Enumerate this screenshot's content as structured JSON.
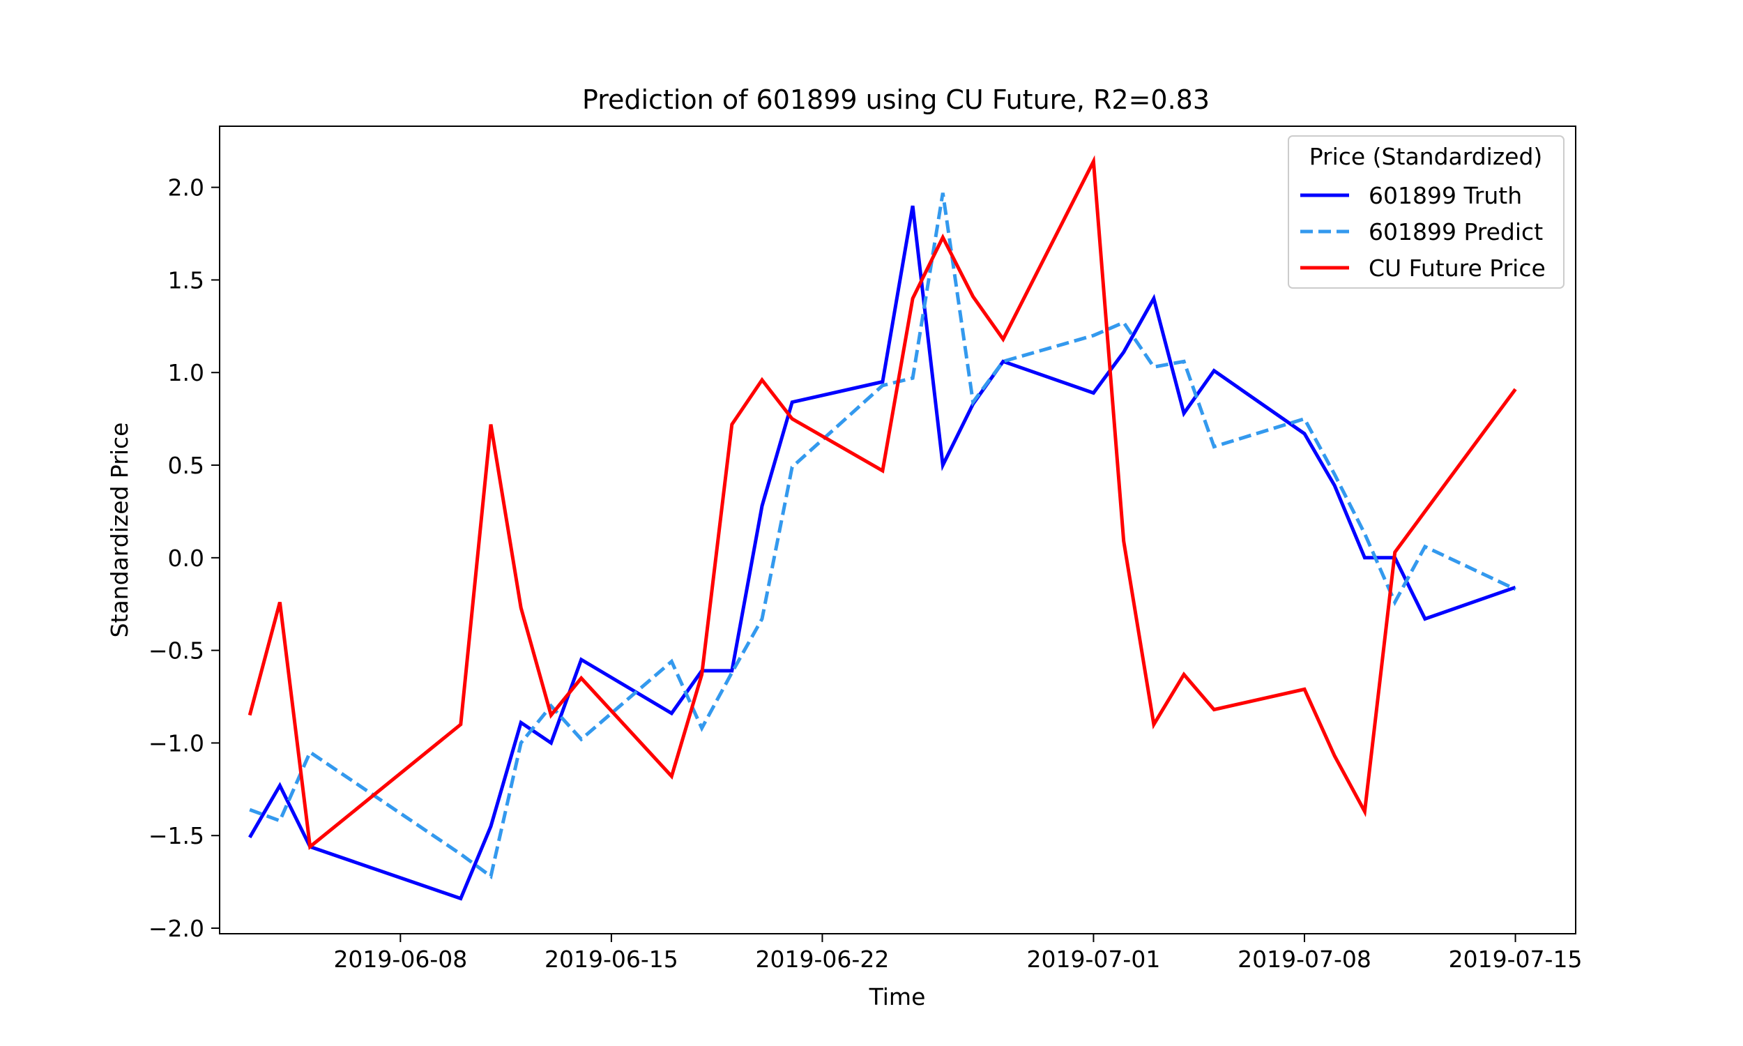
{
  "chart_data": {
    "type": "line",
    "title": "Prediction of 601899 using CU Future, R2=0.83",
    "xlabel": "Time",
    "ylabel": "Standardized Price",
    "xlim": [
      "2019-06-02",
      "2019-07-17"
    ],
    "ylim": [
      -2.03,
      2.33
    ],
    "xticks": [
      "2019-06-08",
      "2019-06-15",
      "2019-06-22",
      "2019-07-01",
      "2019-07-08",
      "2019-07-15"
    ],
    "yticks": [
      -2.0,
      -1.5,
      -1.0,
      -0.5,
      0.0,
      0.5,
      1.0,
      1.5,
      2.0
    ],
    "ytick_labels": [
      "−2.0",
      "−1.5",
      "−1.0",
      "−0.5",
      "0.0",
      "0.5",
      "1.0",
      "1.5",
      "2.0"
    ],
    "grid": false,
    "legend": {
      "title": "Price (Standardized)",
      "placement": "top-right"
    },
    "x": [
      "2019-06-03",
      "2019-06-04",
      "2019-06-05",
      "2019-06-10",
      "2019-06-11",
      "2019-06-12",
      "2019-06-13",
      "2019-06-14",
      "2019-06-17",
      "2019-06-18",
      "2019-06-19",
      "2019-06-20",
      "2019-06-21",
      "2019-06-24",
      "2019-06-25",
      "2019-06-26",
      "2019-06-27",
      "2019-06-28",
      "2019-07-01",
      "2019-07-02",
      "2019-07-03",
      "2019-07-04",
      "2019-07-05",
      "2019-07-08",
      "2019-07-09",
      "2019-07-10",
      "2019-07-11",
      "2019-07-12",
      "2019-07-15"
    ],
    "series": [
      {
        "name": "601899 Truth",
        "color": "#0000ff",
        "dash": "solid",
        "values": [
          -1.51,
          -1.23,
          -1.56,
          -1.84,
          -1.45,
          -0.89,
          -1.0,
          -0.55,
          -0.84,
          -0.61,
          -0.61,
          0.28,
          0.84,
          0.95,
          1.9,
          0.5,
          0.83,
          1.06,
          0.89,
          1.11,
          1.4,
          0.78,
          1.01,
          0.67,
          0.39,
          0.0,
          0.0,
          -0.33,
          -0.16
        ]
      },
      {
        "name": "601899 Predict",
        "color": "#3399ee",
        "dash": "dashed",
        "values": [
          -1.36,
          -1.42,
          -1.05,
          -1.6,
          -1.72,
          -1.0,
          -0.8,
          -0.98,
          -0.56,
          -0.92,
          -0.62,
          -0.33,
          0.49,
          0.93,
          0.97,
          1.97,
          0.84,
          1.06,
          1.2,
          1.27,
          1.03,
          1.06,
          0.6,
          0.75,
          0.45,
          0.13,
          -0.24,
          0.06,
          -0.17
        ]
      },
      {
        "name": "CU Future Price",
        "color": "#ff0000",
        "dash": "solid",
        "values": [
          -0.85,
          -0.24,
          -1.56,
          -0.9,
          0.72,
          -0.27,
          -0.85,
          -0.65,
          -1.18,
          -0.63,
          0.72,
          0.96,
          0.75,
          0.47,
          1.4,
          1.73,
          1.41,
          1.18,
          2.14,
          0.09,
          -0.9,
          -0.63,
          -0.82,
          -0.71,
          -1.07,
          -1.37,
          0.03,
          0.25,
          0.91
        ]
      }
    ]
  }
}
